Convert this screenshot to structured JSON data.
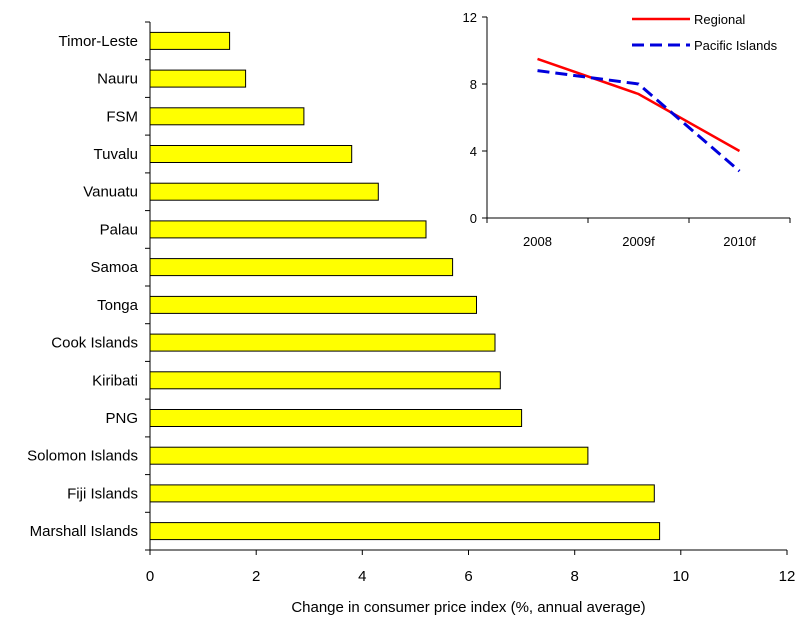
{
  "chart_data": [
    {
      "type": "bar",
      "orientation": "horizontal",
      "categories": [
        "Timor-Leste",
        "Nauru",
        "FSM",
        "Tuvalu",
        "Vanuatu",
        "Palau",
        "Samoa",
        "Tonga",
        "Cook Islands",
        "Kiribati",
        "PNG",
        "Solomon Islands",
        "Fiji Islands",
        "Marshall Islands"
      ],
      "values": [
        1.5,
        1.8,
        2.9,
        3.8,
        4.3,
        5.2,
        5.7,
        6.15,
        6.5,
        6.6,
        7.0,
        8.25,
        9.5,
        9.6
      ],
      "xlabel": "Change in consumer price index (%, annual average)",
      "xlim": [
        0,
        12
      ],
      "xticks": [
        "0",
        "2",
        "4",
        "6",
        "8",
        "10",
        "12"
      ],
      "bar_color": "#ffff00",
      "grid": false
    },
    {
      "type": "line",
      "categories": [
        "2008",
        "2009f",
        "2010f"
      ],
      "series": [
        {
          "name": "Regional",
          "values": [
            9.5,
            7.4,
            4.0
          ],
          "color": "#ff0000",
          "dash": "solid"
        },
        {
          "name": "Pacific Islands",
          "values": [
            8.8,
            8.0,
            2.8
          ],
          "color": "#0000dd",
          "dash": "dashed"
        }
      ],
      "ylim": [
        0,
        12
      ],
      "yticks": [
        "0",
        "4",
        "8",
        "12"
      ],
      "legend": "top-right",
      "grid": false
    }
  ]
}
